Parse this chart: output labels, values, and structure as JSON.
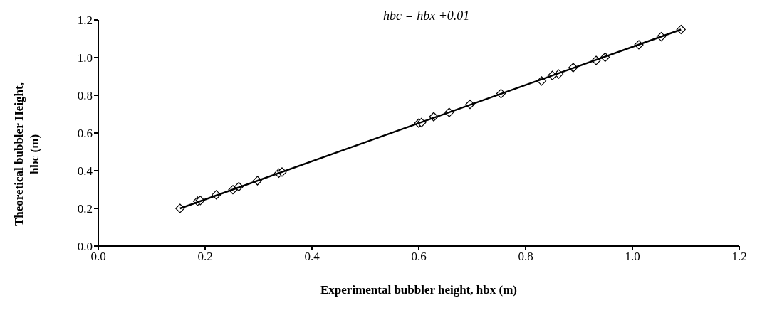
{
  "chart_data": {
    "type": "scatter",
    "xlabel": "Experimental bubbler height, hbx (m)",
    "ylabel": "Theoretical  bubbler Height, hbc (m)",
    "annotations": [
      "hbc = hbx +0.01"
    ],
    "xlim": [
      0,
      1.2
    ],
    "ylim": [
      0,
      1.2
    ],
    "xticks": [
      {
        "value": 0,
        "label": "0.0"
      },
      {
        "value": 0.2,
        "label": "0.2"
      },
      {
        "value": 0.4,
        "label": "0.4"
      },
      {
        "value": 0.6,
        "label": "0.6"
      },
      {
        "value": 0.8,
        "label": "0.8"
      },
      {
        "value": 1.0,
        "label": "1.0"
      },
      {
        "value": 1.2,
        "label": "1.2"
      }
    ],
    "yticks": [
      {
        "value": 0,
        "label": "0.0"
      },
      {
        "value": 0.2,
        "label": "0.2"
      },
      {
        "value": 0.4,
        "label": "0.4"
      },
      {
        "value": 0.6,
        "label": "0.6"
      },
      {
        "value": 0.8,
        "label": "0.8"
      },
      {
        "value": 1.0,
        "label": "1.0"
      },
      {
        "value": 1.2,
        "label": "1.2"
      }
    ],
    "grid": false,
    "legend": false,
    "marker": "diamond",
    "series": [
      {
        "color": "#000000",
        "x": [
          0.153,
          0.186,
          0.191,
          0.221,
          0.252,
          0.263,
          0.298,
          0.338,
          0.344,
          0.6,
          0.605,
          0.628,
          0.657,
          0.696,
          0.754,
          0.83,
          0.85,
          0.862,
          0.889,
          0.932,
          0.949,
          1.012,
          1.054,
          1.091
        ],
        "values": [
          0.2,
          0.238,
          0.242,
          0.272,
          0.299,
          0.315,
          0.347,
          0.387,
          0.393,
          0.652,
          0.655,
          0.686,
          0.709,
          0.752,
          0.809,
          0.876,
          0.905,
          0.913,
          0.947,
          0.985,
          1.002,
          1.068,
          1.111,
          1.149
        ]
      },
      {
        "type": "line",
        "color": "#000000",
        "line_style": "solid",
        "marker": "none",
        "x": [
          0.153,
          1.091
        ],
        "values": [
          0.2,
          1.149
        ]
      }
    ]
  }
}
